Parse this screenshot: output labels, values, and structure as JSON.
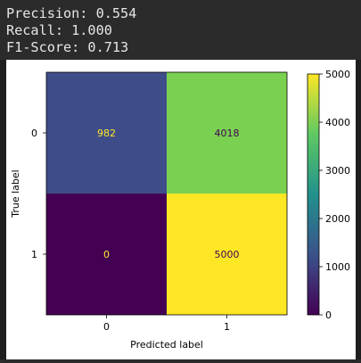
{
  "console": {
    "lines": [
      "Precision: 0.554",
      "Recall: 1.000",
      "F1-Score: 0.713"
    ]
  },
  "chart_data": {
    "type": "heatmap",
    "title": "",
    "xlabel": "Predicted label",
    "ylabel": "True label",
    "x_categories": [
      "0",
      "1"
    ],
    "y_categories": [
      "0",
      "1"
    ],
    "matrix": [
      [
        982,
        4018
      ],
      [
        0,
        5000
      ]
    ],
    "cell_colors": [
      [
        "#3e4d8a",
        "#7ad151"
      ],
      [
        "#440154",
        "#fde725"
      ]
    ],
    "cell_text_colors": [
      [
        "#fde725",
        "#440154"
      ],
      [
        "#fde725",
        "#440154"
      ]
    ],
    "colorbar": {
      "range": [
        0,
        5000
      ],
      "ticks": [
        "0",
        "1000",
        "2000",
        "3000",
        "4000",
        "5000"
      ],
      "colormap": [
        "#440154",
        "#3b528b",
        "#21918c",
        "#5ec962",
        "#fde725"
      ]
    }
  }
}
